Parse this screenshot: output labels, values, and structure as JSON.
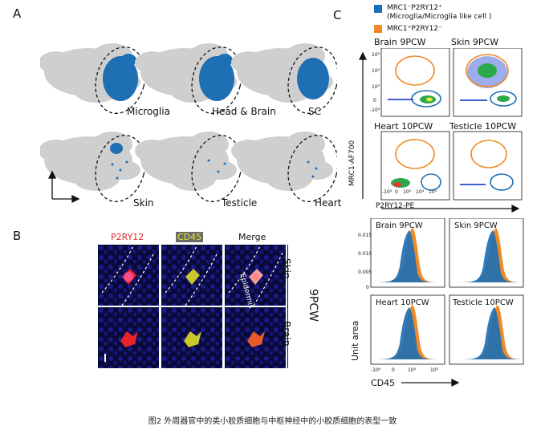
{
  "panels": {
    "a": "A",
    "b": "B",
    "c": "C"
  },
  "panelA": {
    "umaps": [
      {
        "label": "Microglia"
      },
      {
        "label": "Head & Brain"
      },
      {
        "label": "SC"
      },
      {
        "label": "Skin"
      },
      {
        "label": "Testicle"
      },
      {
        "label": "Heart"
      }
    ]
  },
  "panelB": {
    "col_labels": [
      "P2RY12",
      "CD45",
      "Merge"
    ],
    "col_colors": [
      "#e8242b",
      "#d8d82a",
      "#111111"
    ],
    "row_labels": [
      "Skin",
      "Brain"
    ],
    "age_label": "9PCW",
    "annotation": "Epidermis"
  },
  "panelC": {
    "legend": [
      {
        "label": "MRC1⁻P2RY12⁺",
        "sub": "(Microglia/Microglia like cell )",
        "color": "#1f6fb4"
      },
      {
        "label": "MRC1⁺P2RY12⁻",
        "sub": "",
        "color": "#f08a24"
      }
    ],
    "facs": [
      {
        "title": "Brain 9PCW"
      },
      {
        "title": "Skin 9PCW"
      },
      {
        "title": "Heart 10PCW"
      },
      {
        "title": "Testicle 10PCW"
      }
    ],
    "facs_ylabel": "MRC1-AF700",
    "facs_xlabel": "P2RY12-PE",
    "facs_yticks": [
      "10⁵",
      "10⁴",
      "10³",
      "0",
      "-10³"
    ],
    "facs_xticks": [
      "-10³",
      "0",
      "10³",
      "10⁴",
      "10⁵"
    ],
    "hist": [
      {
        "title": "Brain 9PCW"
      },
      {
        "title": "Skin 9PCW"
      },
      {
        "title": "Heart 10PCW"
      },
      {
        "title": "Testicle 10PCW"
      }
    ],
    "hist_ylabel": "Unit area",
    "hist_xlabel": "CD45",
    "hist_yticks": [
      "0.015",
      "0.010",
      "0.005",
      "0"
    ],
    "hist_xticks": [
      "-10⁴",
      "0",
      "10⁴",
      "10⁵"
    ]
  },
  "caption": "图2 外周器官中的类小胶质细胞与中枢神经中的小胶质细胞的表型一致"
}
